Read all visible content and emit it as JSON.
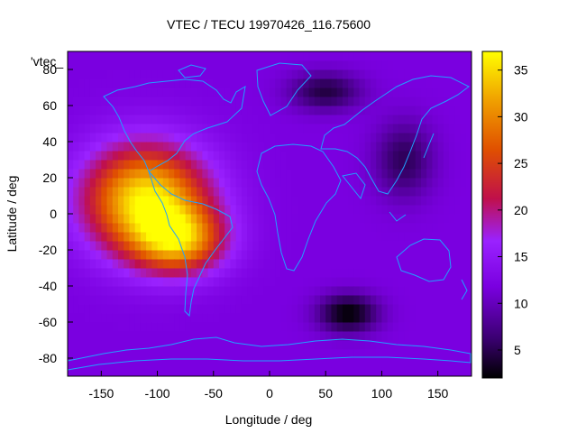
{
  "chart_data": {
    "type": "heatmap",
    "title": "VTEC / TECU 19970426_116.75600",
    "xlabel": "Longitude / deg",
    "ylabel": "Latitude / deg",
    "xlim": [
      -180,
      180
    ],
    "ylim": [
      -90,
      90
    ],
    "x_ticks": [
      "-150",
      "-100",
      "-50",
      "0",
      "50",
      "100",
      "150"
    ],
    "y_ticks": [
      "-80",
      "-60",
      "-40",
      "-20",
      "0",
      "20",
      "40",
      "60",
      "80"
    ],
    "colorbar": {
      "range": [
        2,
        37
      ],
      "ticks": [
        "5",
        "10",
        "15",
        "20",
        "25",
        "30",
        "35"
      ],
      "palette": [
        "#000000",
        "#3a0070",
        "#7a00e0",
        "#9a22ff",
        "#c0104a",
        "#e05000",
        "#f0a000",
        "#ffff00"
      ]
    },
    "legend_key": "'vtec_",
    "field": {
      "background": 12,
      "features": [
        {
          "kind": "maximum",
          "lon": -110,
          "lat": 8,
          "value": 36,
          "extent_lon": 55,
          "extent_lat": 30
        },
        {
          "kind": "maximum",
          "lon": -80,
          "lat": -15,
          "value": 28,
          "extent_lon": 40,
          "extent_lat": 18
        },
        {
          "kind": "minimum",
          "lon": 70,
          "lat": -55,
          "value": 2,
          "extent_lon": 25,
          "extent_lat": 10
        },
        {
          "kind": "minimum",
          "lon": 50,
          "lat": 68,
          "value": 5,
          "extent_lon": 30,
          "extent_lat": 10
        },
        {
          "kind": "minimum",
          "lon": 120,
          "lat": 30,
          "value": 6,
          "extent_lon": 25,
          "extent_lat": 20
        }
      ]
    },
    "coastline_color": "#20a0ff"
  }
}
